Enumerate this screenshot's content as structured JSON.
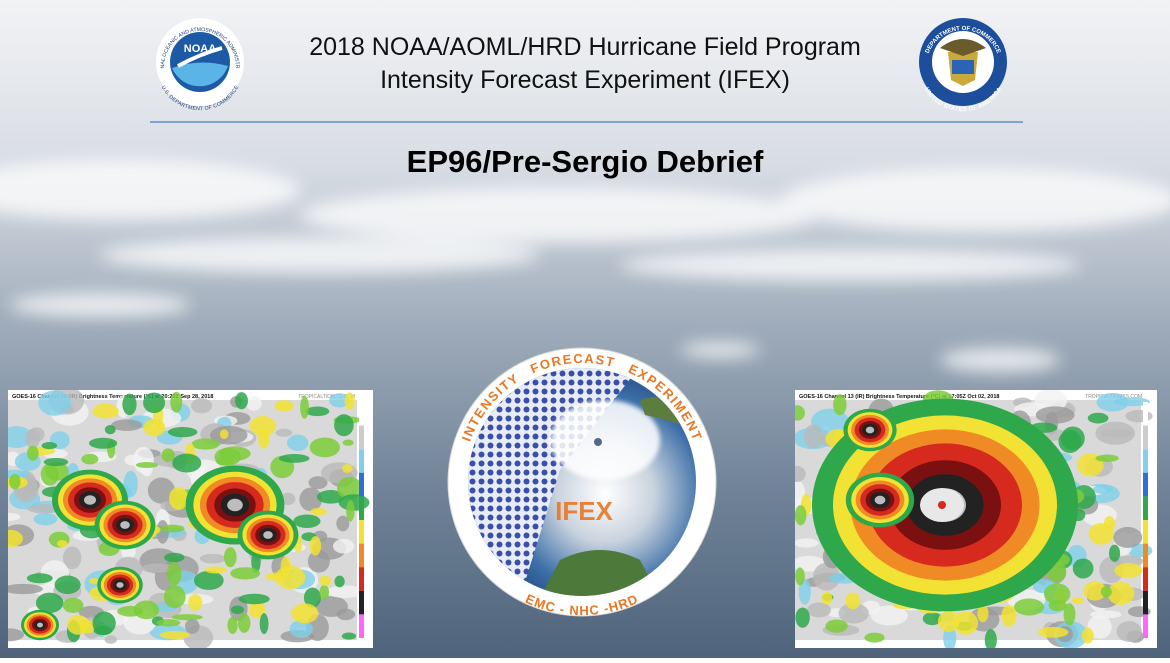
{
  "header": {
    "line1": "2018 NOAA/AOML/HRD Hurricane Field Program",
    "line2": "Intensity Forecast Experiment (IFEX)"
  },
  "title": "EP96/Pre-Sergio Debrief",
  "noaa_logo": {
    "label": "NOAA",
    "ring_top": "NATIONAL OCEANIC AND ATMOSPHERIC ADMINISTRATION",
    "ring_bottom": "U.S. DEPARTMENT OF COMMERCE"
  },
  "commerce_seal": {
    "ring_top": "DEPARTMENT OF COMMERCE",
    "ring_bottom": "UNITED STATES OF AMERICA"
  },
  "ifex_logo": {
    "top_words": [
      "INTENSITY",
      "FORECAST",
      "EXPERIMENT"
    ],
    "center": "IFEX",
    "bottom": "EMC - NHC -HRD"
  },
  "images": [
    {
      "caption": "GOES-16 Channel 13 (IR) Brightness Temperature (°C) at 20:20Z Sep 28, 2018",
      "credit": "TROPICALTIDBITS.COM"
    },
    {
      "caption": "GOES-16 Channel 13 (IR) Brightness Temperature (°C) at 17:05Z Oct 02, 2018",
      "credit": "TROPICALTIDBITS.COM"
    }
  ]
}
